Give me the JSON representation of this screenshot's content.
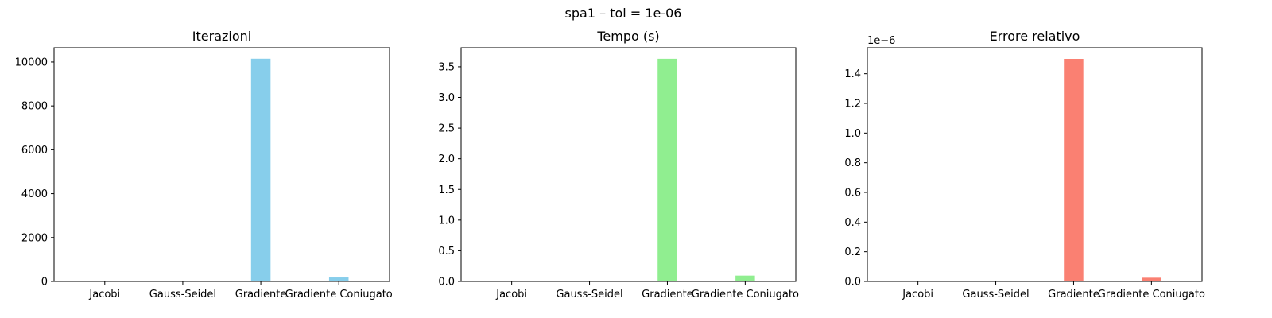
{
  "figure": {
    "suptitle": "spa1 – tol = 1e-06"
  },
  "chart_data": [
    {
      "type": "bar",
      "title": "Iterazioni",
      "categories": [
        "Jacobi",
        "Gauss-Seidel",
        "Gradiente",
        "Gradiente Coniugato"
      ],
      "values": [
        0,
        0,
        10150,
        180
      ],
      "color": "#87ceeb",
      "ylim": [
        0,
        10650
      ],
      "yticks": [
        0,
        2000,
        4000,
        6000,
        8000,
        10000
      ],
      "ytick_labels": [
        "0",
        "2000",
        "4000",
        "6000",
        "8000",
        "10000"
      ],
      "offset_label": "",
      "xlabel": "",
      "ylabel": "",
      "grid": false
    },
    {
      "type": "bar",
      "title": "Tempo (s)",
      "categories": [
        "Jacobi",
        "Gauss-Seidel",
        "Gradiente",
        "Gradiente Coniugato"
      ],
      "values": [
        0,
        0.012,
        3.63,
        0.095
      ],
      "color": "#90ee90",
      "ylim": [
        0,
        3.81
      ],
      "yticks": [
        0,
        0.5,
        1.0,
        1.5,
        2.0,
        2.5,
        3.0,
        3.5
      ],
      "ytick_labels": [
        "0.0",
        "0.5",
        "1.0",
        "1.5",
        "2.0",
        "2.5",
        "3.0",
        "3.5"
      ],
      "offset_label": "",
      "xlabel": "",
      "ylabel": "",
      "grid": false
    },
    {
      "type": "bar",
      "title": "Errore relativo",
      "categories": [
        "Jacobi",
        "Gauss-Seidel",
        "Gradiente",
        "Gradiente Coniugato"
      ],
      "values": [
        0,
        0,
        1.5,
        0.025
      ],
      "color": "#fa8072",
      "ylim": [
        0,
        1.575
      ],
      "yticks": [
        0,
        0.2,
        0.4,
        0.6,
        0.8,
        1.0,
        1.2,
        1.4
      ],
      "ytick_labels": [
        "0.0",
        "0.2",
        "0.4",
        "0.6",
        "0.8",
        "1.0",
        "1.2",
        "1.4"
      ],
      "offset_label": "1e−6",
      "xlabel": "",
      "ylabel": "",
      "grid": false
    }
  ]
}
